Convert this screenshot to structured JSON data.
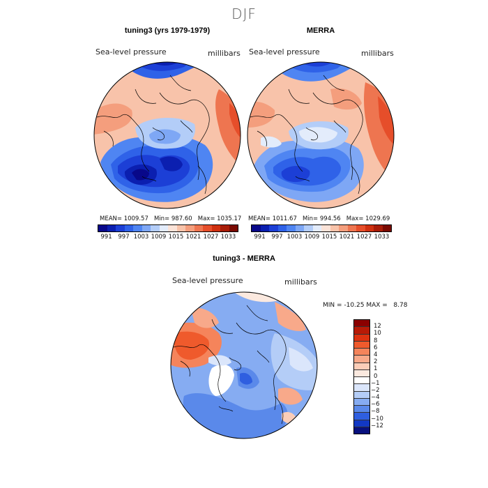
{
  "title": "DJF",
  "panels": [
    {
      "id": "tuning3",
      "title": "tuning3 (yrs 1979-1979)",
      "variable": "Sea-level pressure",
      "units": "millibars",
      "mean_label": "MEAN=",
      "mean": "1009.57",
      "min_label": "Min=",
      "min": "987.60",
      "max_label": "Max=",
      "max": "1035.17"
    },
    {
      "id": "merra",
      "title": "MERRA",
      "variable": "Sea-level pressure",
      "units": "millibars",
      "mean_label": "MEAN=",
      "mean": "1011.67",
      "min_label": "Min=",
      "min": "994.56",
      "max_label": "Max=",
      "max": "1029.69"
    }
  ],
  "colorbar": {
    "ticks": [
      "991",
      "997",
      "1003",
      "1009",
      "1015",
      "1021",
      "1027",
      "1033"
    ],
    "colors": [
      "#08088a",
      "#0b1fb0",
      "#1c3fd6",
      "#2f62e8",
      "#4f85f2",
      "#7ea7f5",
      "#b3cdf8",
      "#e3ecfb",
      "#fbe3d8",
      "#f8c3aa",
      "#f49e7d",
      "#ee7550",
      "#e64e2a",
      "#cf3010",
      "#a81c08",
      "#7a0a02"
    ]
  },
  "diff": {
    "title": "tuning3 - MERRA",
    "variable": "Sea-level pressure",
    "units": "millibars",
    "min_label": "MIN =",
    "min": "-10.25",
    "max_label": "MAX =",
    "max": "8.78",
    "levels": [
      "12",
      "10",
      "8",
      "6",
      "4",
      "2",
      "1",
      "0",
      "−1",
      "−2",
      "−4",
      "−6",
      "−8",
      "−10",
      "−12"
    ],
    "colors": [
      "#8b0000",
      "#b81a06",
      "#dd3210",
      "#ef5a2c",
      "#f5845b",
      "#f8a98a",
      "#fbcdb8",
      "#fbe9df",
      "#ffffff",
      "#dbe6fb",
      "#b4cdf7",
      "#86acf2",
      "#5a89ea",
      "#2f5fe0",
      "#1238c4",
      "#08107e"
    ]
  },
  "colors": {
    "coast": "#000000",
    "title_gray": "#555555"
  }
}
